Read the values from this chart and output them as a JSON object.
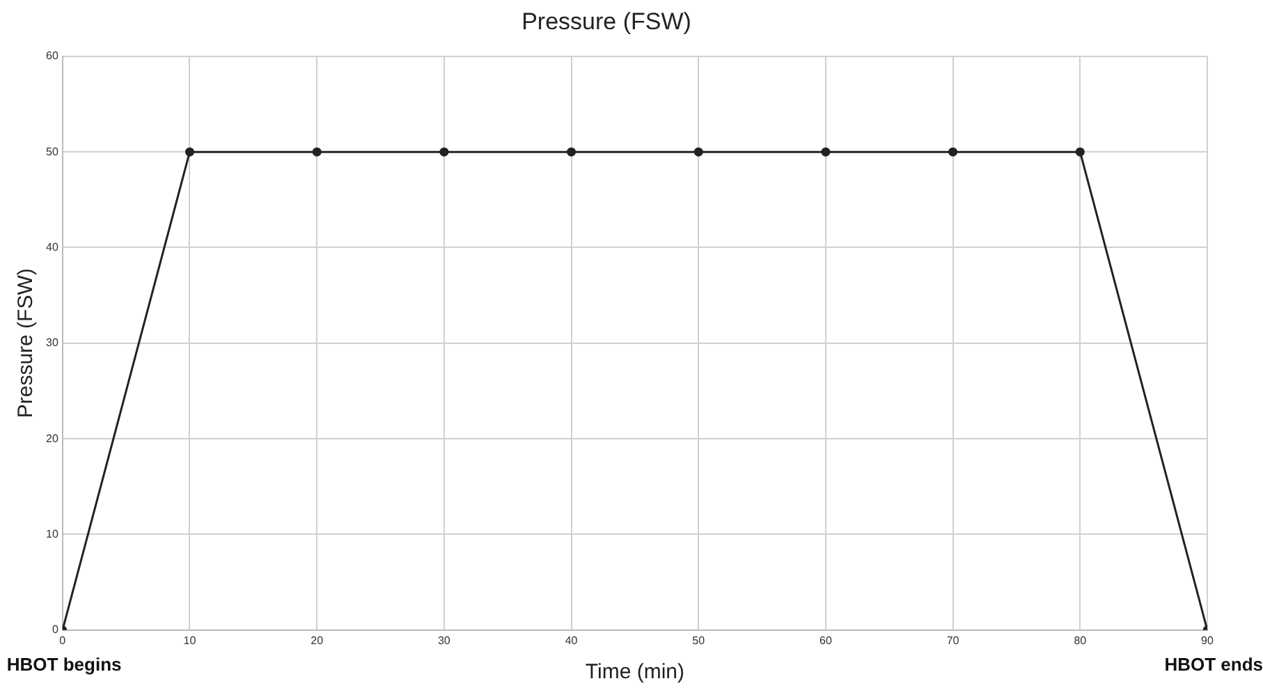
{
  "chart_data": {
    "type": "line",
    "title": "Pressure (FSW)",
    "xlabel": "Time (min)",
    "ylabel": "Pressure (FSW)",
    "x": [
      0,
      10,
      20,
      30,
      40,
      50,
      60,
      70,
      80,
      90
    ],
    "series": [
      {
        "color": "#222222",
        "values": [
          0,
          50,
          50,
          50,
          50,
          50,
          50,
          50,
          50,
          0
        ]
      }
    ],
    "xlim": [
      0,
      90
    ],
    "xticks": [
      0,
      10,
      20,
      30,
      40,
      50,
      60,
      70,
      80,
      90
    ],
    "ylim": [
      0,
      60
    ],
    "yticks": [
      0,
      10,
      20,
      30,
      40,
      50,
      60
    ],
    "annotations": [
      {
        "text": "HBOT begins",
        "x": 0,
        "y": 0
      },
      {
        "text": "HBOT ends",
        "x": 90,
        "y": 0
      }
    ],
    "grid": true,
    "legend": false,
    "marker": "circle",
    "line_style": "solid"
  }
}
